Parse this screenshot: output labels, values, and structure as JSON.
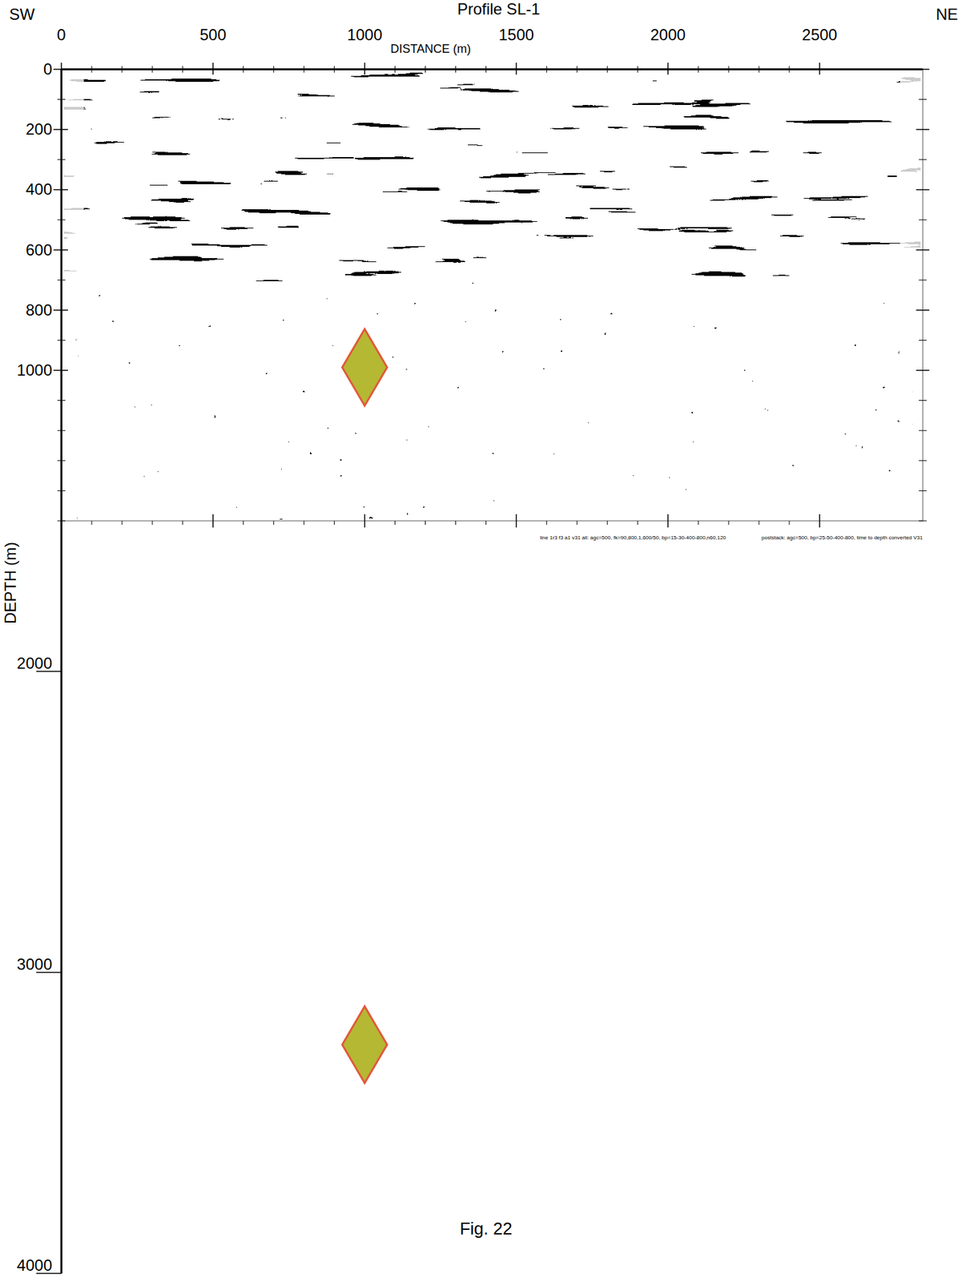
{
  "chart_data": {
    "type": "scatter",
    "title": "Profile SL-1",
    "left_label": "SW",
    "right_label": "NE",
    "x_label": "DISTANCE (m)",
    "y_label": "DEPTH (m)",
    "caption": "Fig. 22",
    "processing_notes": [
      "line 1r3 f3 a1 v31 all: agc=500, fk=90,800,1,600/50, bp=15-30-400-800,n60,120",
      "poststack: agc=500, bp=25-50-400-800, time to depth converted V31"
    ],
    "image_depth": 1500,
    "x": [
      1000,
      1000
    ],
    "values": [
      990,
      3240
    ],
    "marker": "diamond",
    "color": "#b5b833",
    "xlim": [
      0,
      2840
    ],
    "ylim": [
      0,
      4000
    ],
    "xticks": [
      0,
      500,
      1000,
      1500,
      2000,
      2500
    ],
    "yticks": [
      0,
      200,
      400,
      600,
      800,
      1000,
      2000,
      3000,
      4000
    ],
    "grid": false
  }
}
